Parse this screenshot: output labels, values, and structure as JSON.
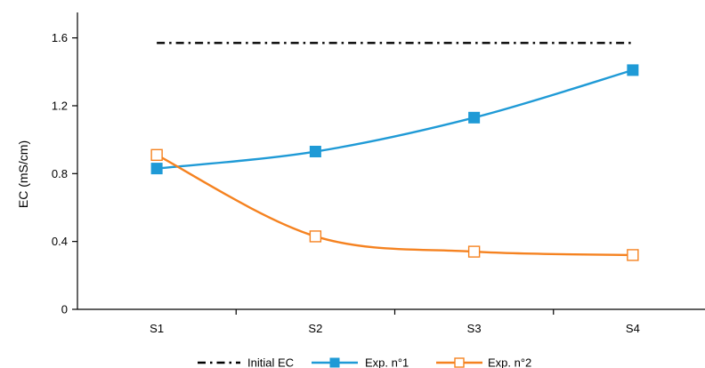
{
  "chart_data": {
    "type": "line",
    "categories": [
      "S1",
      "S2",
      "S3",
      "S4"
    ],
    "ylabel": "EC (mS/cm)",
    "xlabel": "",
    "ylim": [
      0,
      1.75
    ],
    "yticks": [
      0,
      0.4,
      0.8,
      1.2,
      1.6
    ],
    "ytick_labels": [
      "0",
      "0.4",
      "0.8",
      "1.2",
      "1.6"
    ],
    "grid": false,
    "legend_position": "bottom",
    "reference_line": {
      "name": "Initial EC",
      "value": 1.57,
      "style": "dash-dot",
      "color": "#000000"
    },
    "series": [
      {
        "name": "Exp. n°1",
        "values": [
          0.83,
          0.93,
          1.13,
          1.41
        ],
        "color": "#1f9ad6",
        "marker": "filled-square"
      },
      {
        "name": "Exp. n°2",
        "values": [
          0.91,
          0.43,
          0.34,
          0.32
        ],
        "color": "#f58220",
        "marker": "open-square"
      }
    ]
  }
}
